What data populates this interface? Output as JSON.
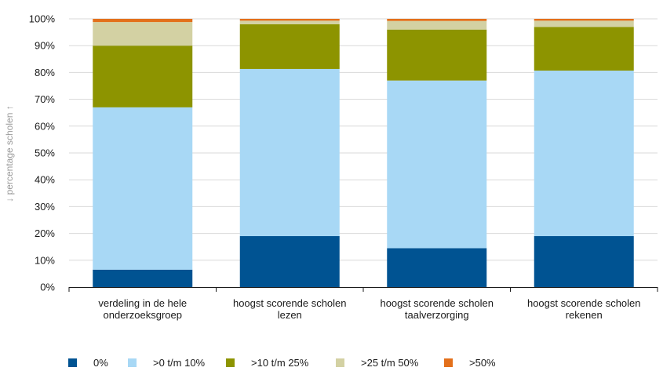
{
  "chart_data": {
    "type": "bar",
    "stacked": true,
    "ylabel": "↓ percentage scholen ↑",
    "ylim": [
      0,
      100
    ],
    "yticks": [
      "0%",
      "10%",
      "20%",
      "30%",
      "40%",
      "50%",
      "60%",
      "70%",
      "80%",
      "90%",
      "100%"
    ],
    "grid": true,
    "legend_position": "bottom",
    "categories": [
      [
        "verdeling in de hele",
        "onderzoeksgroep"
      ],
      [
        "hoogst scorende scholen",
        "lezen"
      ],
      [
        "hoogst scorende scholen",
        "taalverzorging"
      ],
      [
        "hoogst scorende scholen",
        "rekenen"
      ]
    ],
    "series": [
      {
        "name": "0%",
        "color": "#005392",
        "values": [
          6.5,
          19,
          14.5,
          19
        ]
      },
      {
        "name": ">0 t/m 10%",
        "color": "#a8d8f5",
        "values": [
          60.5,
          62.3,
          62.5,
          61.7
        ]
      },
      {
        "name": ">10 t/m 25%",
        "color": "#8d9400",
        "values": [
          23,
          16.7,
          19,
          16.3
        ]
      },
      {
        "name": ">25 t/m 50%",
        "color": "#d3d1a3",
        "values": [
          8.8,
          1.3,
          3.2,
          2.3
        ]
      },
      {
        "name": ">50%",
        "color": "#e3701b",
        "values": [
          1.2,
          0.7,
          0.8,
          0.7
        ]
      }
    ]
  }
}
